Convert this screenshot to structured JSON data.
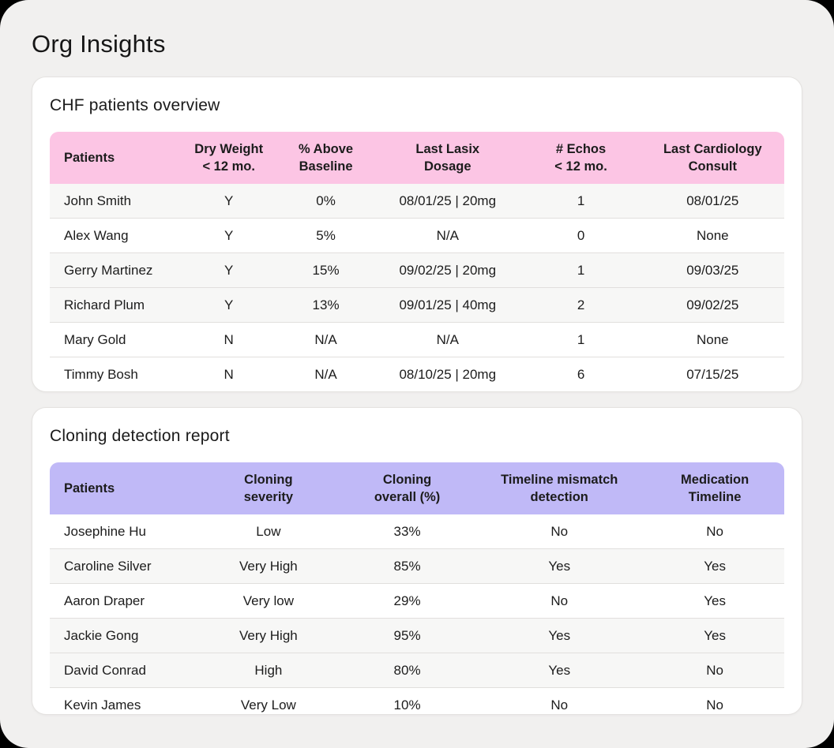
{
  "page": {
    "title": "Org Insights",
    "background_color": "#f1f0ef",
    "frame_color": "#000000"
  },
  "cards": [
    {
      "title": "CHF patients overview",
      "table": {
        "header_color": "#fcc5e4",
        "columns": [
          "Patients",
          "Dry Weight\n< 12 mo.",
          "% Above\nBaseline",
          "Last Lasix\nDosage",
          "# Echos\n< 12 mo.",
          "Last Cardiology\nConsult"
        ],
        "rows": [
          {
            "shaded": true,
            "cells": [
              "John Smith",
              "Y",
              "0%",
              "08/01/25 | 20mg",
              "1",
              "08/01/25"
            ]
          },
          {
            "shaded": false,
            "cells": [
              "Alex Wang",
              "Y",
              "5%",
              "N/A",
              "0",
              "None"
            ]
          },
          {
            "shaded": true,
            "cells": [
              "Gerry Martinez",
              "Y",
              "15%",
              "09/02/25 | 20mg",
              "1",
              "09/03/25"
            ]
          },
          {
            "shaded": true,
            "cells": [
              "Richard Plum",
              "Y",
              "13%",
              "09/01/25 | 40mg",
              "2",
              "09/02/25"
            ]
          },
          {
            "shaded": false,
            "cells": [
              "Mary Gold",
              "N",
              "N/A",
              "N/A",
              "1",
              "None"
            ]
          },
          {
            "shaded": false,
            "cells": [
              "Timmy Bosh",
              "N",
              "N/A",
              "08/10/25 | 20mg",
              "6",
              "07/15/25"
            ]
          }
        ]
      }
    },
    {
      "title": "Cloning detection report",
      "table": {
        "header_color": "#c0b9f7",
        "columns": [
          "Patients",
          "Cloning\nseverity",
          "Cloning\noverall (%)",
          "Timeline mismatch\ndetection",
          "Medication\nTimeline"
        ],
        "rows": [
          {
            "shaded": false,
            "cells": [
              "Josephine Hu",
              "Low",
              "33%",
              "No",
              "No"
            ]
          },
          {
            "shaded": true,
            "cells": [
              "Caroline Silver",
              "Very High",
              "85%",
              "Yes",
              "Yes"
            ]
          },
          {
            "shaded": false,
            "cells": [
              "Aaron Draper",
              "Very low",
              "29%",
              "No",
              "Yes"
            ]
          },
          {
            "shaded": true,
            "cells": [
              "Jackie Gong",
              "Very High",
              "95%",
              "Yes",
              "Yes"
            ]
          },
          {
            "shaded": true,
            "cells": [
              "David Conrad",
              "High",
              "80%",
              "Yes",
              "No"
            ]
          },
          {
            "shaded": false,
            "cells": [
              "Kevin James",
              "Very Low",
              "10%",
              "No",
              "No"
            ]
          }
        ]
      }
    }
  ]
}
